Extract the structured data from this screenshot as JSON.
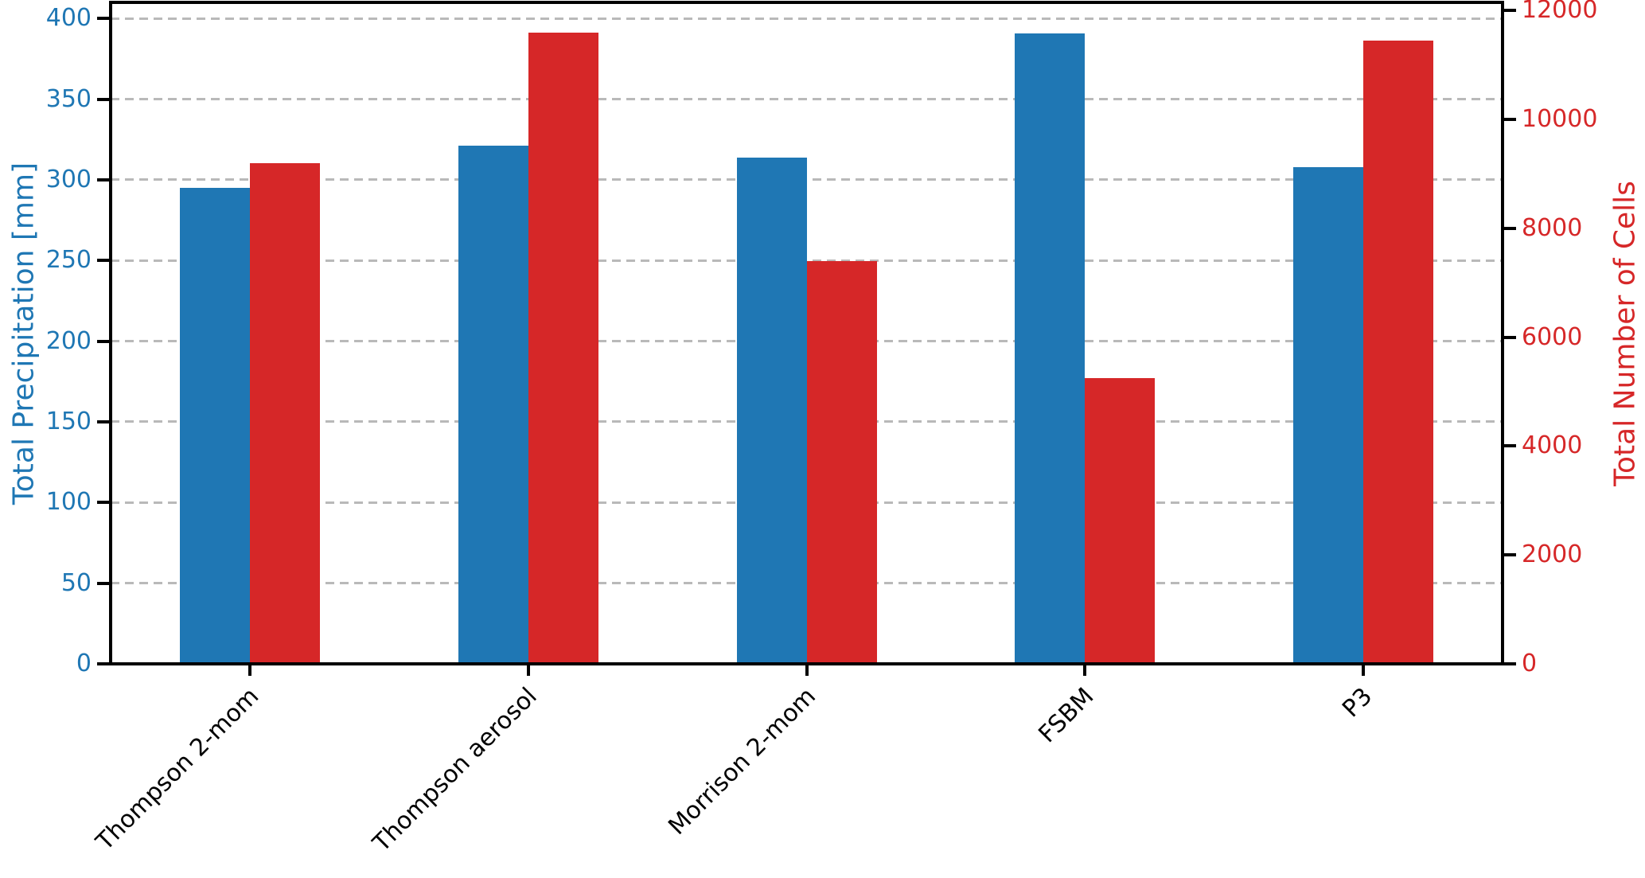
{
  "chart_data": {
    "type": "bar",
    "categories": [
      "Thompson 2-mom",
      "Thompson aerosol",
      "Morrison 2-mom",
      "FSBM",
      "P3"
    ],
    "series": [
      {
        "name": "Total Precipitation [mm]",
        "axis": "left",
        "color": "#1f77b4",
        "values": [
          295,
          321,
          314,
          391,
          308
        ]
      },
      {
        "name": "Total Number of Cells",
        "axis": "right",
        "color": "#d62728",
        "values": [
          9200,
          11600,
          7400,
          5250,
          11450
        ]
      }
    ],
    "left_axis": {
      "label": "Total Precipitation [mm]",
      "color": "#1f77b4",
      "ticks": [
        0,
        50,
        100,
        150,
        200,
        250,
        300,
        350,
        400
      ],
      "range": [
        0,
        410
      ]
    },
    "right_axis": {
      "label": "Total Number of Cells",
      "color": "#d62728",
      "ticks": [
        0,
        2000,
        4000,
        6000,
        8000,
        10000,
        12000
      ],
      "range": [
        0,
        12150
      ]
    },
    "grid": {
      "show": true,
      "orientation": "horizontal",
      "style": "dashed",
      "color": "#b9b9b9"
    },
    "legend_position": "none",
    "title": ""
  }
}
